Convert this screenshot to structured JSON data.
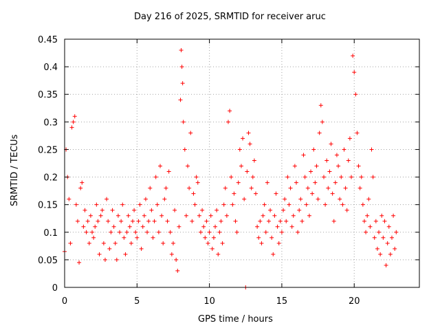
{
  "chart_data": {
    "type": "scatter",
    "title": "Day 216 of 2025, SRMTID for receiver aruc",
    "xlabel": "GPS time / hours",
    "ylabel": "SRMTID / TECUs",
    "xlim": [
      0,
      24.5
    ],
    "ylim": [
      0,
      0.45
    ],
    "xticks": [
      0,
      5,
      10,
      15,
      20
    ],
    "xtick_labels": [
      "0",
      "5",
      "10",
      "15",
      "20"
    ],
    "yticks": [
      0,
      0.05,
      0.1,
      0.15,
      0.2,
      0.25,
      0.3,
      0.35,
      0.4,
      0.45
    ],
    "ytick_labels": [
      "0",
      "0.05",
      "0.1",
      "0.15",
      "0.2",
      "0.25",
      "0.3",
      "0.35",
      "0.4",
      "0.45"
    ],
    "grid": true,
    "marker": "+",
    "series": [
      {
        "name": "SRMTID",
        "color": "#ff0000",
        "x": [
          0.0,
          0.1,
          0.2,
          0.3,
          0.4,
          0.5,
          0.6,
          0.7,
          0.8,
          0.9,
          1.0,
          1.1,
          1.2,
          1.3,
          1.4,
          1.5,
          1.6,
          1.7,
          1.8,
          1.9,
          2.0,
          2.1,
          2.2,
          2.3,
          2.4,
          2.5,
          2.6,
          2.7,
          2.8,
          2.9,
          3.0,
          3.1,
          3.2,
          3.3,
          3.4,
          3.5,
          3.6,
          3.7,
          3.8,
          3.9,
          4.0,
          4.1,
          4.2,
          4.3,
          4.4,
          4.5,
          4.6,
          4.7,
          4.8,
          4.9,
          5.0,
          5.1,
          5.2,
          5.3,
          5.4,
          5.5,
          5.6,
          5.7,
          5.8,
          5.9,
          6.0,
          6.1,
          6.2,
          6.3,
          6.4,
          6.5,
          6.6,
          6.7,
          6.8,
          6.9,
          7.0,
          7.1,
          7.2,
          7.3,
          7.4,
          7.5,
          7.6,
          7.7,
          7.8,
          7.9,
          8.0,
          8.05,
          8.1,
          8.15,
          8.2,
          8.3,
          8.4,
          8.5,
          8.6,
          8.7,
          8.8,
          8.9,
          9.0,
          9.1,
          9.2,
          9.3,
          9.4,
          9.5,
          9.6,
          9.7,
          9.8,
          9.9,
          10.0,
          10.1,
          10.2,
          10.3,
          10.4,
          10.5,
          10.6,
          10.7,
          10.8,
          10.9,
          11.0,
          11.1,
          11.2,
          11.3,
          11.4,
          11.5,
          11.6,
          11.7,
          11.8,
          11.9,
          12.0,
          12.1,
          12.2,
          12.3,
          12.4,
          12.5,
          12.6,
          12.7,
          12.8,
          12.9,
          13.0,
          13.1,
          13.2,
          13.3,
          13.4,
          13.5,
          13.6,
          13.7,
          13.8,
          13.9,
          14.0,
          14.1,
          14.2,
          14.3,
          14.4,
          14.5,
          14.6,
          14.7,
          14.8,
          14.9,
          15.0,
          15.1,
          15.2,
          15.3,
          15.4,
          15.5,
          15.6,
          15.7,
          15.8,
          15.9,
          16.0,
          16.1,
          16.2,
          16.3,
          16.4,
          16.5,
          16.6,
          16.7,
          16.8,
          16.9,
          17.0,
          17.1,
          17.2,
          17.3,
          17.4,
          17.5,
          17.6,
          17.7,
          17.8,
          17.9,
          18.0,
          18.1,
          18.2,
          18.3,
          18.4,
          18.5,
          18.6,
          18.7,
          18.8,
          18.9,
          19.0,
          19.1,
          19.2,
          19.3,
          19.4,
          19.5,
          19.6,
          19.7,
          19.8,
          19.9,
          20.0,
          20.1,
          20.2,
          20.3,
          20.4,
          20.5,
          20.6,
          20.7,
          20.8,
          20.9,
          21.0,
          21.1,
          21.2,
          21.3,
          21.4,
          21.5,
          21.6,
          21.7,
          21.8,
          21.9,
          22.0,
          22.1,
          22.2,
          22.3,
          22.4,
          22.5,
          22.6,
          22.7,
          22.8,
          22.9
        ],
        "y": [
          0.065,
          0.25,
          0.2,
          0.16,
          0.08,
          0.29,
          0.3,
          0.31,
          0.15,
          0.12,
          0.045,
          0.18,
          0.19,
          0.11,
          0.14,
          0.1,
          0.12,
          0.08,
          0.13,
          0.1,
          0.09,
          0.11,
          0.15,
          0.12,
          0.06,
          0.13,
          0.14,
          0.08,
          0.05,
          0.16,
          0.12,
          0.07,
          0.1,
          0.14,
          0.11,
          0.08,
          0.05,
          0.13,
          0.1,
          0.12,
          0.15,
          0.09,
          0.06,
          0.1,
          0.13,
          0.11,
          0.08,
          0.12,
          0.14,
          0.1,
          0.09,
          0.12,
          0.15,
          0.07,
          0.11,
          0.13,
          0.16,
          0.1,
          0.12,
          0.18,
          0.14,
          0.09,
          0.12,
          0.2,
          0.15,
          0.1,
          0.22,
          0.13,
          0.08,
          0.16,
          0.18,
          0.12,
          0.21,
          0.1,
          0.06,
          0.08,
          0.14,
          0.05,
          0.03,
          0.11,
          0.34,
          0.43,
          0.4,
          0.37,
          0.3,
          0.25,
          0.13,
          0.22,
          0.18,
          0.28,
          0.12,
          0.17,
          0.15,
          0.2,
          0.19,
          0.13,
          0.1,
          0.14,
          0.11,
          0.09,
          0.12,
          0.08,
          0.1,
          0.13,
          0.07,
          0.09,
          0.11,
          0.14,
          0.06,
          0.1,
          0.12,
          0.08,
          0.15,
          0.18,
          0.13,
          0.3,
          0.32,
          0.2,
          0.15,
          0.17,
          0.12,
          0.1,
          0.19,
          0.25,
          0.22,
          0.27,
          0.16,
          0.0,
          0.21,
          0.28,
          0.26,
          0.18,
          0.2,
          0.23,
          0.17,
          0.11,
          0.09,
          0.12,
          0.08,
          0.13,
          0.15,
          0.1,
          0.19,
          0.12,
          0.14,
          0.09,
          0.06,
          0.13,
          0.17,
          0.11,
          0.08,
          0.12,
          0.1,
          0.14,
          0.16,
          0.12,
          0.2,
          0.15,
          0.18,
          0.11,
          0.13,
          0.22,
          0.19,
          0.1,
          0.14,
          0.16,
          0.12,
          0.24,
          0.2,
          0.15,
          0.18,
          0.13,
          0.21,
          0.17,
          0.25,
          0.19,
          0.22,
          0.16,
          0.28,
          0.33,
          0.3,
          0.2,
          0.15,
          0.23,
          0.18,
          0.21,
          0.26,
          0.17,
          0.12,
          0.19,
          0.24,
          0.22,
          0.16,
          0.2,
          0.15,
          0.25,
          0.18,
          0.14,
          0.23,
          0.27,
          0.2,
          0.42,
          0.39,
          0.35,
          0.28,
          0.22,
          0.18,
          0.2,
          0.15,
          0.12,
          0.1,
          0.13,
          0.16,
          0.11,
          0.25,
          0.2,
          0.09,
          0.12,
          0.07,
          0.1,
          0.06,
          0.13,
          0.09,
          0.12,
          0.04,
          0.08,
          0.11,
          0.06,
          0.09,
          0.13,
          0.07,
          0.1
        ]
      }
    ]
  }
}
